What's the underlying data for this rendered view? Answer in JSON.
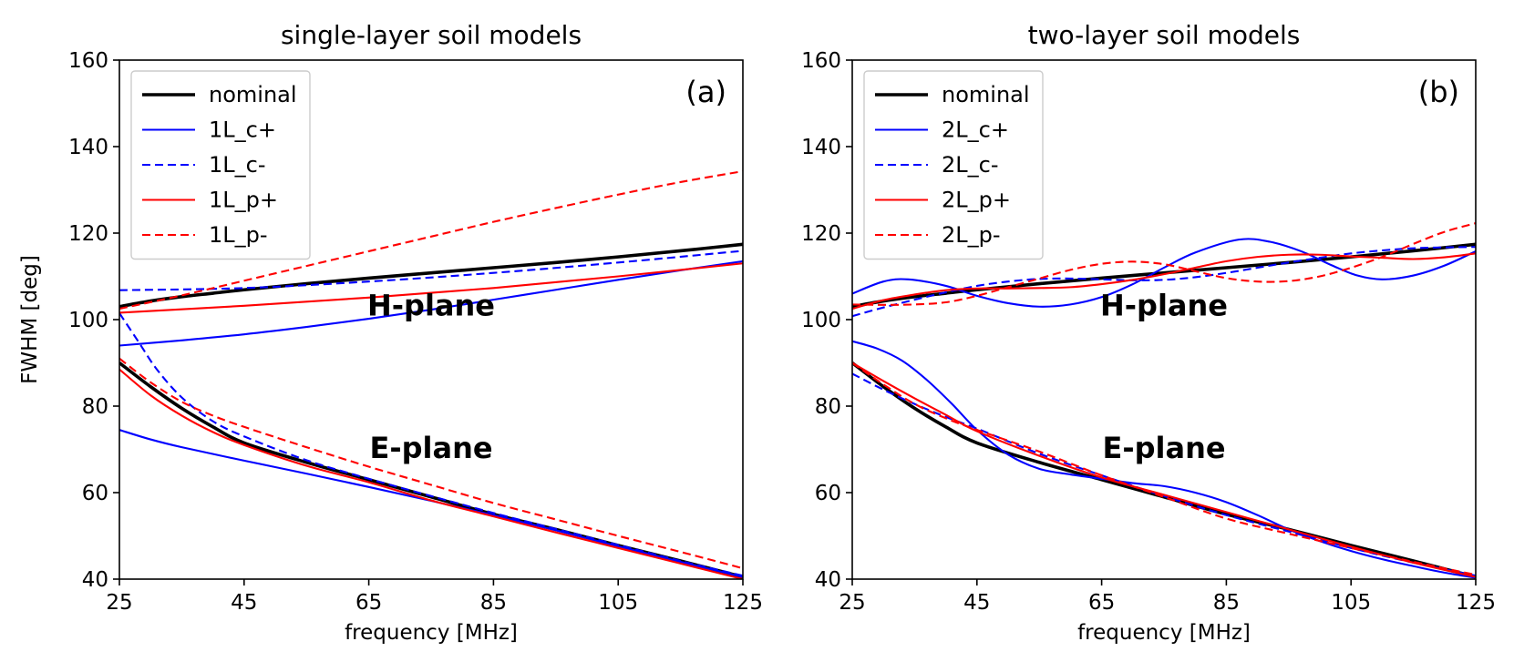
{
  "chart_data": [
    {
      "type": "line",
      "panel_label": "(a)",
      "title": "single-layer soil models",
      "xlabel": "frequency [MHz]",
      "ylabel": "FWHM [deg]",
      "xlim": [
        25,
        125
      ],
      "ylim": [
        40,
        160
      ],
      "xticks": [
        25,
        45,
        65,
        85,
        105,
        125
      ],
      "yticks": [
        40,
        60,
        80,
        100,
        120,
        140,
        160
      ],
      "legend_position": "upper-left",
      "annotations": [
        {
          "text": "H-plane",
          "x": 75,
          "y": 101
        },
        {
          "text": "E-plane",
          "x": 75,
          "y": 68
        }
      ],
      "series": [
        {
          "name": "nominal",
          "color": "#000000",
          "dash": "solid",
          "weight": "thick",
          "legend": true,
          "x": [
            25,
            30,
            35,
            40,
            45,
            55,
            65,
            75,
            85,
            95,
            105,
            115,
            125
          ],
          "y": [
            103,
            104.3,
            105.3,
            106.1,
            106.9,
            108.3,
            109.6,
            110.8,
            112,
            113.2,
            114.5,
            115.9,
            117.4
          ]
        },
        {
          "name": "nominal",
          "color": "#000000",
          "dash": "solid",
          "weight": "thick",
          "legend": false,
          "x": [
            25,
            30,
            35,
            40,
            45,
            55,
            65,
            75,
            85,
            95,
            105,
            115,
            125
          ],
          "y": [
            90,
            84.5,
            79.5,
            75.2,
            71.5,
            67,
            63,
            59,
            55,
            51.5,
            47.8,
            44.2,
            40.5
          ]
        },
        {
          "name": "1L_c+",
          "color": "#0000ff",
          "dash": "solid",
          "weight": "thin",
          "legend": true,
          "x": [
            25,
            35,
            45,
            55,
            65,
            75,
            85,
            95,
            105,
            115,
            125
          ],
          "y": [
            94,
            95.2,
            96.6,
            98.3,
            100.2,
            102.3,
            104.6,
            106.9,
            109.2,
            111.4,
            113.5
          ]
        },
        {
          "name": "1L_c+",
          "color": "#0000ff",
          "dash": "solid",
          "weight": "thin",
          "legend": false,
          "x": [
            25,
            30,
            35,
            45,
            55,
            65,
            75,
            85,
            95,
            105,
            115,
            125
          ],
          "y": [
            74.5,
            72.3,
            70.5,
            67.4,
            64.4,
            61.3,
            58.1,
            54.8,
            51.3,
            47.6,
            44,
            40.5
          ]
        },
        {
          "name": "1L_c-",
          "color": "#0000ff",
          "dash": "dashed",
          "weight": "thin",
          "legend": true,
          "x": [
            25,
            45,
            65,
            85,
            105,
            125
          ],
          "y": [
            106.8,
            107.3,
            108.8,
            110.8,
            113.2,
            115.9
          ]
        },
        {
          "name": "1L_c-",
          "color": "#0000ff",
          "dash": "dashed",
          "weight": "thin",
          "legend": false,
          "x": [
            25,
            28,
            31,
            35,
            40,
            45,
            55,
            65,
            75,
            85,
            95,
            105,
            115,
            125
          ],
          "y": [
            101.5,
            95,
            88.5,
            82,
            76.5,
            73,
            67.5,
            63.2,
            59.2,
            55.3,
            51.6,
            47.9,
            44.2,
            40.8
          ]
        },
        {
          "name": "1L_p+",
          "color": "#ff0000",
          "dash": "solid",
          "weight": "thin",
          "legend": true,
          "x": [
            25,
            45,
            65,
            85,
            105,
            125
          ],
          "y": [
            101.6,
            103.2,
            105.1,
            107.3,
            110,
            113
          ]
        },
        {
          "name": "1L_p+",
          "color": "#ff0000",
          "dash": "solid",
          "weight": "thin",
          "legend": false,
          "x": [
            25,
            30,
            35,
            40,
            45,
            55,
            65,
            75,
            85,
            95,
            105,
            115,
            125
          ],
          "y": [
            88.5,
            82.5,
            77.8,
            74,
            71,
            66.2,
            62.4,
            58.2,
            54.5,
            50.8,
            47.2,
            43.6,
            40
          ]
        },
        {
          "name": "1L_p-",
          "color": "#ff0000",
          "dash": "dashed",
          "weight": "thin",
          "legend": true,
          "x": [
            25,
            35,
            45,
            55,
            65,
            75,
            85,
            95,
            105,
            115,
            125
          ],
          "y": [
            102.5,
            105.6,
            109,
            112.4,
            115.8,
            119.2,
            122.6,
            125.8,
            128.9,
            131.8,
            134.3
          ]
        },
        {
          "name": "1L_p-",
          "color": "#ff0000",
          "dash": "dashed",
          "weight": "thin",
          "legend": false,
          "x": [
            25,
            30,
            35,
            40,
            45,
            55,
            65,
            75,
            85,
            95,
            105,
            115,
            125
          ],
          "y": [
            91,
            85.5,
            81,
            77.8,
            75.2,
            70.5,
            66,
            61.8,
            57.6,
            53.8,
            50,
            46.3,
            42.5
          ]
        }
      ]
    },
    {
      "type": "line",
      "panel_label": "(b)",
      "title": "two-layer soil models",
      "xlabel": "frequency [MHz]",
      "ylabel": "",
      "xlim": [
        25,
        125
      ],
      "ylim": [
        40,
        160
      ],
      "xticks": [
        25,
        45,
        65,
        85,
        105,
        125
      ],
      "yticks": [
        40,
        60,
        80,
        100,
        120,
        140,
        160
      ],
      "legend_position": "upper-left",
      "annotations": [
        {
          "text": "H-plane",
          "x": 75,
          "y": 101
        },
        {
          "text": "E-plane",
          "x": 75,
          "y": 68
        }
      ],
      "series": [
        {
          "name": "nominal",
          "color": "#000000",
          "dash": "solid",
          "weight": "thick",
          "legend": true,
          "x": [
            25,
            30,
            35,
            40,
            45,
            55,
            65,
            75,
            85,
            95,
            105,
            115,
            125
          ],
          "y": [
            103,
            104.3,
            105.3,
            106.1,
            106.9,
            108.3,
            109.6,
            110.8,
            112,
            113.2,
            114.5,
            115.9,
            117.4
          ]
        },
        {
          "name": "nominal",
          "color": "#000000",
          "dash": "solid",
          "weight": "thick",
          "legend": false,
          "x": [
            25,
            30,
            35,
            40,
            45,
            55,
            65,
            75,
            85,
            95,
            105,
            115,
            125
          ],
          "y": [
            90,
            84.5,
            79.5,
            75.2,
            71.5,
            67,
            63,
            59,
            55,
            51.5,
            47.8,
            44.2,
            40.5
          ]
        },
        {
          "name": "2L_c+",
          "color": "#0000ff",
          "dash": "solid",
          "weight": "thin",
          "legend": true,
          "x": [
            25,
            30,
            34,
            40,
            45,
            50,
            55,
            60,
            65,
            70,
            75,
            80,
            87,
            92,
            97,
            102,
            106,
            110,
            115,
            120,
            125
          ],
          "y": [
            106,
            108.8,
            109.3,
            107.8,
            105.5,
            103.8,
            103,
            103.5,
            105.2,
            108.2,
            112,
            115.5,
            118.5,
            118,
            115.8,
            112.5,
            110.2,
            109.3,
            110.2,
            112.5,
            115.8
          ]
        },
        {
          "name": "2L_c+",
          "color": "#0000ff",
          "dash": "solid",
          "weight": "thin",
          "legend": false,
          "x": [
            25,
            29,
            33,
            37,
            41,
            45,
            50,
            55,
            60,
            65,
            70,
            75,
            80,
            85,
            90,
            95,
            100,
            105,
            110,
            115,
            120,
            125
          ],
          "y": [
            95,
            93.3,
            90.5,
            86,
            80.5,
            74.5,
            68.8,
            65.5,
            64.2,
            63.2,
            62.2,
            61.5,
            60,
            57.8,
            54.8,
            51.5,
            48.8,
            46.5,
            44.6,
            43,
            41.5,
            40.3
          ]
        },
        {
          "name": "2L_c-",
          "color": "#0000ff",
          "dash": "dashed",
          "weight": "thin",
          "legend": true,
          "x": [
            25,
            30,
            35,
            40,
            45,
            50,
            55,
            60,
            65,
            70,
            75,
            80,
            85,
            90,
            95,
            100,
            105,
            110,
            115,
            120,
            125
          ],
          "y": [
            100.8,
            102.8,
            104.6,
            106.3,
            107.8,
            108.8,
            109.4,
            109.5,
            109.3,
            109.1,
            109.2,
            109.8,
            110.8,
            112,
            113.2,
            114.3,
            115.3,
            116,
            116.5,
            116.7,
            116.8
          ]
        },
        {
          "name": "2L_c-",
          "color": "#0000ff",
          "dash": "dashed",
          "weight": "thin",
          "legend": false,
          "x": [
            25,
            30,
            35,
            40,
            45,
            55,
            65,
            75,
            85,
            95,
            105,
            115,
            125
          ],
          "y": [
            87.5,
            83.8,
            80.5,
            77.5,
            74.8,
            69,
            64,
            59.2,
            54.8,
            51,
            47.2,
            43.8,
            40.8
          ]
        },
        {
          "name": "2L_p+",
          "color": "#ff0000",
          "dash": "solid",
          "weight": "thin",
          "legend": true,
          "x": [
            25,
            30,
            35,
            40,
            45,
            50,
            55,
            60,
            65,
            70,
            75,
            80,
            85,
            90,
            95,
            100,
            105,
            110,
            115,
            120,
            125
          ],
          "y": [
            102.5,
            104.5,
            105.8,
            106.8,
            107.2,
            107.2,
            107.3,
            107.5,
            108.2,
            109.2,
            110.5,
            112,
            113.5,
            114.5,
            115,
            115,
            114.6,
            114.3,
            114,
            114.4,
            115.3
          ]
        },
        {
          "name": "2L_p+",
          "color": "#ff0000",
          "dash": "solid",
          "weight": "thin",
          "legend": false,
          "x": [
            25,
            30,
            35,
            40,
            45,
            55,
            65,
            75,
            85,
            95,
            105,
            115,
            125
          ],
          "y": [
            90,
            85.8,
            81.8,
            78,
            74.2,
            68.5,
            63.5,
            59.5,
            55.5,
            51.5,
            47.5,
            43.8,
            40.5
          ]
        },
        {
          "name": "2L_p-",
          "color": "#ff0000",
          "dash": "dashed",
          "weight": "thin",
          "legend": true,
          "x": [
            25,
            30,
            35,
            40,
            45,
            50,
            55,
            60,
            65,
            70,
            75,
            80,
            85,
            90,
            95,
            100,
            105,
            110,
            115,
            120,
            125
          ],
          "y": [
            103.5,
            103.4,
            103.5,
            104,
            105.5,
            107.5,
            109.5,
            111.5,
            112.9,
            113.4,
            112.8,
            111.2,
            109.6,
            108.8,
            108.9,
            110,
            112,
            114.5,
            117.5,
            120.3,
            122.3
          ]
        },
        {
          "name": "2L_p-",
          "color": "#ff0000",
          "dash": "dashed",
          "weight": "thin",
          "legend": false,
          "x": [
            25,
            30,
            35,
            40,
            45,
            55,
            65,
            75,
            85,
            95,
            105,
            115,
            125
          ],
          "y": [
            90,
            85,
            80.5,
            77.2,
            74.5,
            69.5,
            64,
            59,
            54,
            50.5,
            47.2,
            44,
            41
          ]
        }
      ]
    }
  ]
}
